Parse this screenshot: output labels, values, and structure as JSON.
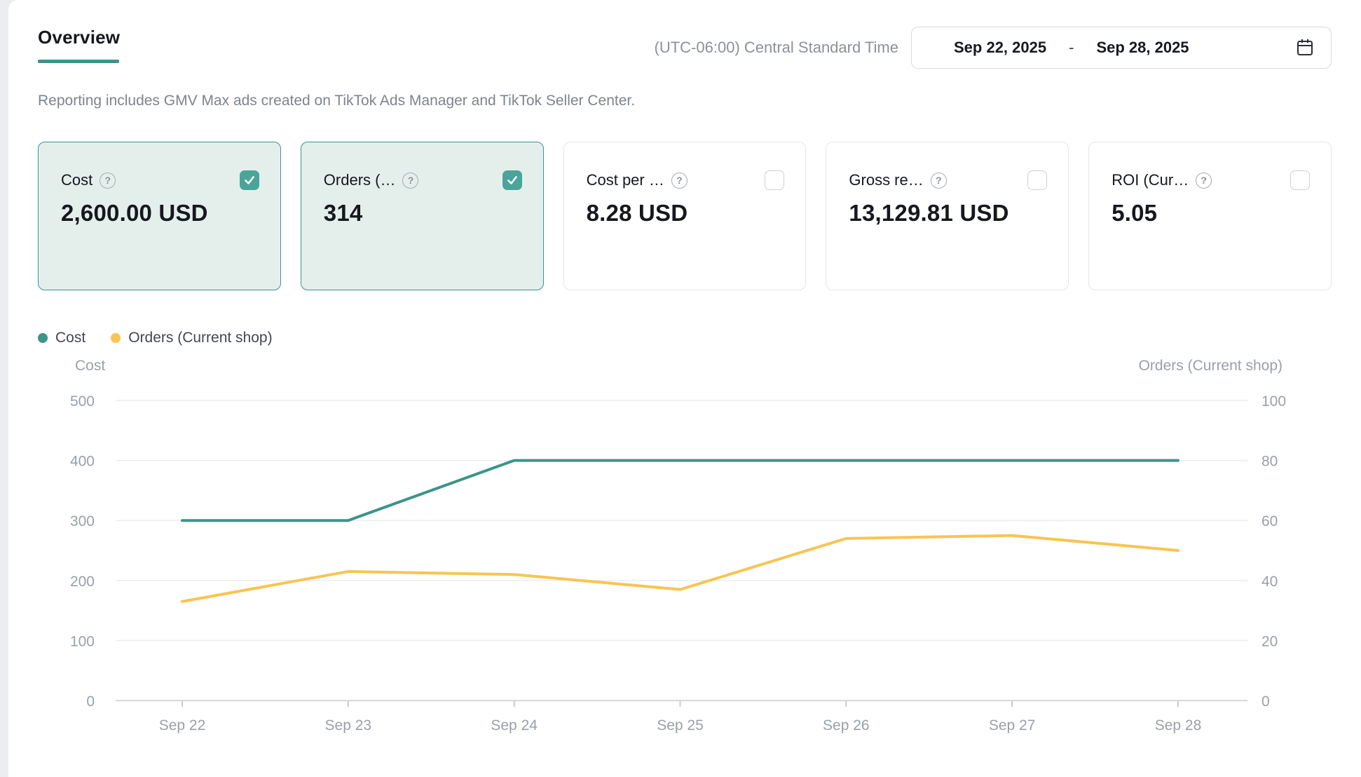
{
  "header": {
    "title": "Overview",
    "timezone": "(UTC-06:00) Central Standard Time",
    "date_range": {
      "start": "Sep 22, 2025",
      "separator": "-",
      "end": "Sep 28, 2025"
    }
  },
  "subtitle": "Reporting includes GMV Max ads created on TikTok Ads Manager and TikTok Seller Center.",
  "icons": {
    "help_glyph": "?"
  },
  "metric_cards": [
    {
      "label": "Cost",
      "value": "2,600.00 USD",
      "selected": true
    },
    {
      "label": "Orders (…",
      "value": "314",
      "selected": true
    },
    {
      "label": "Cost per …",
      "value": "8.28 USD",
      "selected": false
    },
    {
      "label": "Gross re…",
      "value": "13,129.81 USD",
      "selected": false
    },
    {
      "label": "ROI (Cur…",
      "value": "5.05",
      "selected": false
    }
  ],
  "legend": [
    {
      "label": "Cost",
      "color": "#3c948b"
    },
    {
      "label": "Orders (Current shop)",
      "color": "#f8c452"
    }
  ],
  "chart_data": {
    "type": "line",
    "title": "",
    "categories": [
      "Sep 22",
      "Sep 23",
      "Sep 24",
      "Sep 25",
      "Sep 26",
      "Sep 27",
      "Sep 28"
    ],
    "series": [
      {
        "name": "Cost",
        "axis": "left",
        "color": "#3c948b",
        "values": [
          300,
          300,
          400,
          400,
          400,
          400,
          400
        ]
      },
      {
        "name": "Orders (Current shop)",
        "axis": "right",
        "color": "#f8c452",
        "values": [
          33,
          43,
          42,
          37,
          54,
          55,
          50
        ]
      }
    ],
    "left_axis": {
      "title": "Cost",
      "ticks": [
        500,
        400,
        300,
        200,
        100,
        0
      ],
      "range": [
        0,
        500
      ]
    },
    "right_axis": {
      "title": "Orders (Current shop)",
      "ticks": [
        100,
        80,
        60,
        40,
        20,
        0
      ],
      "range": [
        0,
        100
      ]
    },
    "grid": true,
    "legend_position": "top-left"
  },
  "colors": {
    "accent_teal": "#3c948b",
    "checkbox_teal": "#4aa49a",
    "selected_card_bg": "#e4efec",
    "series_yellow": "#f8c452",
    "gridline": "#ededef",
    "axis_line": "#d7d8db",
    "text_dark": "#15181d",
    "text_gray": "#8b909a"
  }
}
